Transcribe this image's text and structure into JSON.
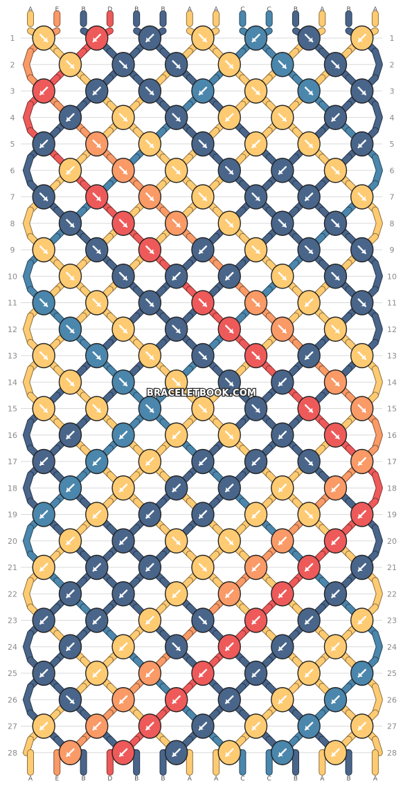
{
  "watermark": "BRACELETBOOK.COM",
  "colors": {
    "A": "#FECB73",
    "E": "#F99A67",
    "B": "#49658A",
    "D": "#EE5A5A",
    "C": "#4B86AC"
  },
  "strings_top": [
    "A",
    "E",
    "B",
    "D",
    "B",
    "B",
    "A",
    "A",
    "C",
    "C",
    "B",
    "A",
    "B",
    "A"
  ],
  "strings_bottom": [
    "A",
    "E",
    "B",
    "D",
    "B",
    "B",
    "A",
    "A",
    "C",
    "C",
    "B",
    "A",
    "B",
    "A"
  ],
  "row_numbers": [
    "1",
    "2",
    "3",
    "4",
    "5",
    "6",
    "7",
    "8",
    "9",
    "10",
    "11",
    "12",
    "13",
    "14",
    "15",
    "16",
    "17",
    "18",
    "19",
    "20",
    "21",
    "22",
    "23",
    "24",
    "25",
    "26",
    "27",
    "28"
  ],
  "knot_arrow_directions": {
    "R": "forward (down-right)",
    "L": "backward (down-left)"
  },
  "knot_rows": [
    [
      "R",
      "L",
      "L",
      "R",
      "L",
      "R",
      "L"
    ],
    [
      "R",
      "R",
      "R",
      "R",
      "R",
      "R"
    ],
    [
      "L",
      "L",
      "R",
      "L",
      "R",
      "R",
      "R"
    ],
    [
      "L",
      "R",
      "R",
      "L",
      "R",
      "L"
    ],
    [
      "L",
      "R",
      "R",
      "R",
      "L",
      "R",
      "L"
    ],
    [
      "L",
      "R",
      "R",
      "R",
      "L",
      "R"
    ],
    [
      "R",
      "R",
      "R",
      "R",
      "R",
      "L",
      "R"
    ],
    [
      "R",
      "R",
      "R",
      "R",
      "R",
      "R"
    ],
    [
      "R",
      "R",
      "R",
      "L",
      "R",
      "R",
      "R"
    ],
    [
      "R",
      "R",
      "L",
      "L",
      "R",
      "R"
    ],
    [
      "R",
      "R",
      "R",
      "R",
      "R",
      "L",
      "R"
    ],
    [
      "R",
      "R",
      "R",
      "R",
      "R",
      "R"
    ],
    [
      "R",
      "R",
      "R",
      "R",
      "R",
      "L",
      "R"
    ],
    [
      "R",
      "R",
      "R",
      "R",
      "L",
      "R"
    ],
    [
      "R",
      "R",
      "R",
      "R",
      "R",
      "R",
      "R"
    ],
    [
      "L",
      "L",
      "L",
      "R",
      "L",
      "R"
    ],
    [
      "L",
      "L",
      "L",
      "L",
      "L",
      "R",
      "L"
    ],
    [
      "L",
      "L",
      "L",
      "L",
      "L",
      "L"
    ],
    [
      "L",
      "L",
      "L",
      "L",
      "L",
      "R",
      "L"
    ],
    [
      "L",
      "L",
      "R",
      "R",
      "L",
      "L"
    ],
    [
      "L",
      "L",
      "L",
      "R",
      "L",
      "L",
      "L"
    ],
    [
      "L",
      "L",
      "L",
      "L",
      "L",
      "L"
    ],
    [
      "L",
      "L",
      "L",
      "R",
      "L",
      "L",
      "L"
    ],
    [
      "L",
      "L",
      "R",
      "L",
      "L",
      "L"
    ],
    [
      "L",
      "L",
      "L",
      "L",
      "L",
      "L",
      "L"
    ],
    [
      "R",
      "L",
      "L",
      "L",
      "L",
      "L"
    ],
    [
      "L",
      "L",
      "L",
      "L",
      "L",
      "L",
      "L"
    ],
    [
      "L",
      "L",
      "L",
      "L",
      "L",
      "L"
    ]
  ]
}
